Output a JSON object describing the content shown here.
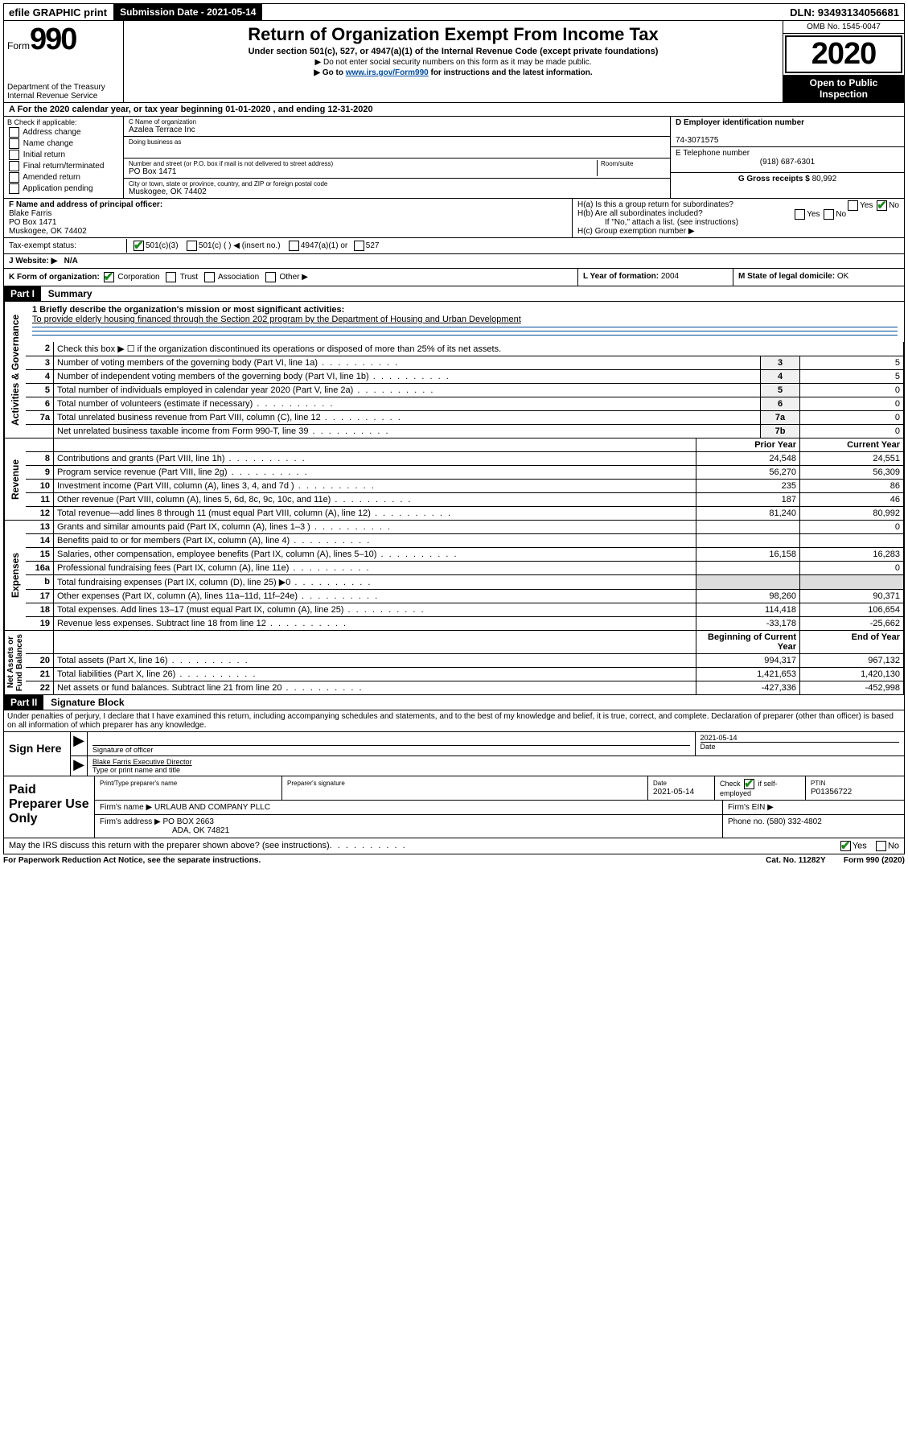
{
  "topbar": {
    "efile": "efile GRAPHIC print",
    "submission": "Submission Date - 2021-05-14",
    "dln": "DLN: 93493134056681"
  },
  "header": {
    "form_label": "Form",
    "form_num": "990",
    "title": "Return of Organization Exempt From Income Tax",
    "sub": "Under section 501(c), 527, or 4947(a)(1) of the Internal Revenue Code (except private foundations)",
    "line1": "▶ Do not enter social security numbers on this form as it may be made public.",
    "line2_pre": "▶ Go to ",
    "line2_link": "www.irs.gov/Form990",
    "line2_post": " for instructions and the latest information.",
    "dept": "Department of the Treasury\nInternal Revenue Service",
    "omb": "OMB No. 1545-0047",
    "year": "2020",
    "open": "Open to Public Inspection"
  },
  "rowA": "A  For the 2020 calendar year, or tax year beginning 01-01-2020   , and ending 12-31-2020",
  "boxB": {
    "title": "B Check if applicable:",
    "items": [
      "Address change",
      "Name change",
      "Initial return",
      "Final return/terminated",
      "Amended return",
      "Application pending"
    ]
  },
  "boxC": {
    "name_label": "C Name of organization",
    "name": "Azalea Terrace Inc",
    "dba_label": "Doing business as",
    "addr_label": "Number and street (or P.O. box if mail is not delivered to street address)",
    "room_label": "Room/suite",
    "addr": "PO Box 1471",
    "city_label": "City or town, state or province, country, and ZIP or foreign postal code",
    "city": "Muskogee, OK  74402"
  },
  "boxD": {
    "label": "D Employer identification number",
    "val": "74-3071575"
  },
  "boxE": {
    "label": "E Telephone number",
    "val": "(918) 687-6301"
  },
  "boxG": {
    "label": "G Gross receipts $",
    "val": "80,992"
  },
  "boxF": {
    "label": "F  Name and address of principal officer:",
    "name": "Blake Farris",
    "addr": "PO Box 1471",
    "city": "Muskogee, OK  74402"
  },
  "boxH": {
    "a": "H(a)  Is this a group return for subordinates?",
    "b": "H(b)  Are all subordinates included?",
    "b_note": "If \"No,\" attach a list. (see instructions)",
    "c": "H(c)  Group exemption number ▶"
  },
  "taxI": "Tax-exempt status:",
  "tax_opts": [
    "501(c)(3)",
    "501(c) (  ) ◀ (insert no.)",
    "4947(a)(1) or",
    "527"
  ],
  "boxJ": {
    "label": "J  Website: ▶",
    "val": "N/A"
  },
  "boxK": "K Form of organization:",
  "k_opts": [
    "Corporation",
    "Trust",
    "Association",
    "Other ▶"
  ],
  "boxL": {
    "label": "L Year of formation:",
    "val": "2004"
  },
  "boxM": {
    "label": "M State of legal domicile:",
    "val": "OK"
  },
  "part1": {
    "header": "Part I",
    "title": "Summary"
  },
  "mission_label": "1  Briefly describe the organization's mission or most significant activities:",
  "mission": "To provide elderly housing financed through the Section 202 program by the Department of Housing and Urban Development",
  "gov_lines": [
    {
      "n": "2",
      "d": "Check this box ▶ ☐  if the organization discontinued its operations or disposed of more than 25% of its net assets."
    },
    {
      "n": "3",
      "d": "Number of voting members of the governing body (Part VI, line 1a)",
      "box": "3",
      "v": "5"
    },
    {
      "n": "4",
      "d": "Number of independent voting members of the governing body (Part VI, line 1b)",
      "box": "4",
      "v": "5"
    },
    {
      "n": "5",
      "d": "Total number of individuals employed in calendar year 2020 (Part V, line 2a)",
      "box": "5",
      "v": "0"
    },
    {
      "n": "6",
      "d": "Total number of volunteers (estimate if necessary)",
      "box": "6",
      "v": "0"
    },
    {
      "n": "7a",
      "d": "Total unrelated business revenue from Part VIII, column (C), line 12",
      "box": "7a",
      "v": "0"
    },
    {
      "n": "",
      "d": "Net unrelated business taxable income from Form 990-T, line 39",
      "box": "7b",
      "v": "0"
    }
  ],
  "col_headers": {
    "prior": "Prior Year",
    "current": "Current Year",
    "begin": "Beginning of Current Year",
    "end": "End of Year"
  },
  "rev_lines": [
    {
      "n": "8",
      "d": "Contributions and grants (Part VIII, line 1h)",
      "p": "24,548",
      "c": "24,551"
    },
    {
      "n": "9",
      "d": "Program service revenue (Part VIII, line 2g)",
      "p": "56,270",
      "c": "56,309"
    },
    {
      "n": "10",
      "d": "Investment income (Part VIII, column (A), lines 3, 4, and 7d )",
      "p": "235",
      "c": "86"
    },
    {
      "n": "11",
      "d": "Other revenue (Part VIII, column (A), lines 5, 6d, 8c, 9c, 10c, and 11e)",
      "p": "187",
      "c": "46"
    },
    {
      "n": "12",
      "d": "Total revenue—add lines 8 through 11 (must equal Part VIII, column (A), line 12)",
      "p": "81,240",
      "c": "80,992"
    }
  ],
  "exp_lines": [
    {
      "n": "13",
      "d": "Grants and similar amounts paid (Part IX, column (A), lines 1–3 )",
      "p": "",
      "c": "0"
    },
    {
      "n": "14",
      "d": "Benefits paid to or for members (Part IX, column (A), line 4)",
      "p": "",
      "c": ""
    },
    {
      "n": "15",
      "d": "Salaries, other compensation, employee benefits (Part IX, column (A), lines 5–10)",
      "p": "16,158",
      "c": "16,283"
    },
    {
      "n": "16a",
      "d": "Professional fundraising fees (Part IX, column (A), line 11e)",
      "p": "",
      "c": "0"
    },
    {
      "n": "b",
      "d": "Total fundraising expenses (Part IX, column (D), line 25) ▶0",
      "p": "gray",
      "c": "gray"
    },
    {
      "n": "17",
      "d": "Other expenses (Part IX, column (A), lines 11a–11d, 11f–24e)",
      "p": "98,260",
      "c": "90,371"
    },
    {
      "n": "18",
      "d": "Total expenses. Add lines 13–17 (must equal Part IX, column (A), line 25)",
      "p": "114,418",
      "c": "106,654"
    },
    {
      "n": "19",
      "d": "Revenue less expenses. Subtract line 18 from line 12",
      "p": "-33,178",
      "c": "-25,662"
    }
  ],
  "net_lines": [
    {
      "n": "20",
      "d": "Total assets (Part X, line 16)",
      "p": "994,317",
      "c": "967,132"
    },
    {
      "n": "21",
      "d": "Total liabilities (Part X, line 26)",
      "p": "1,421,653",
      "c": "1,420,130"
    },
    {
      "n": "22",
      "d": "Net assets or fund balances. Subtract line 21 from line 20",
      "p": "-427,336",
      "c": "-452,998"
    }
  ],
  "side_labels": {
    "gov": "Activities & Governance",
    "rev": "Revenue",
    "exp": "Expenses",
    "net": "Net Assets or\nFund Balances"
  },
  "part2": {
    "header": "Part II",
    "title": "Signature Block"
  },
  "perjury": "Under penalties of perjury, I declare that I have examined this return, including accompanying schedules and statements, and to the best of my knowledge and belief, it is true, correct, and complete. Declaration of preparer (other than officer) is based on all information of which preparer has any knowledge.",
  "sign": {
    "here": "Sign Here",
    "sig_label": "Signature of officer",
    "date": "2021-05-14",
    "date_label": "Date",
    "name": "Blake Farris Executive Director",
    "name_label": "Type or print name and title"
  },
  "prep": {
    "title": "Paid Preparer Use Only",
    "h1": "Print/Type preparer's name",
    "h2": "Preparer's signature",
    "h3": "Date",
    "date": "2021-05-14",
    "h4": "Check ☑ if self-employed",
    "h5": "PTIN",
    "ptin": "P01356722",
    "firm_label": "Firm's name    ▶",
    "firm": "URLAUB AND COMPANY PLLC",
    "ein_label": "Firm's EIN ▶",
    "addr_label": "Firm's address ▶",
    "addr": "PO BOX 2663",
    "addr2": "ADA, OK  74821",
    "phone_label": "Phone no.",
    "phone": "(580) 332-4802"
  },
  "discuss": "May the IRS discuss this return with the preparer shown above? (see instructions)",
  "footer": {
    "l": "For Paperwork Reduction Act Notice, see the separate instructions.",
    "m": "Cat. No. 11282Y",
    "r": "Form 990 (2020)"
  }
}
